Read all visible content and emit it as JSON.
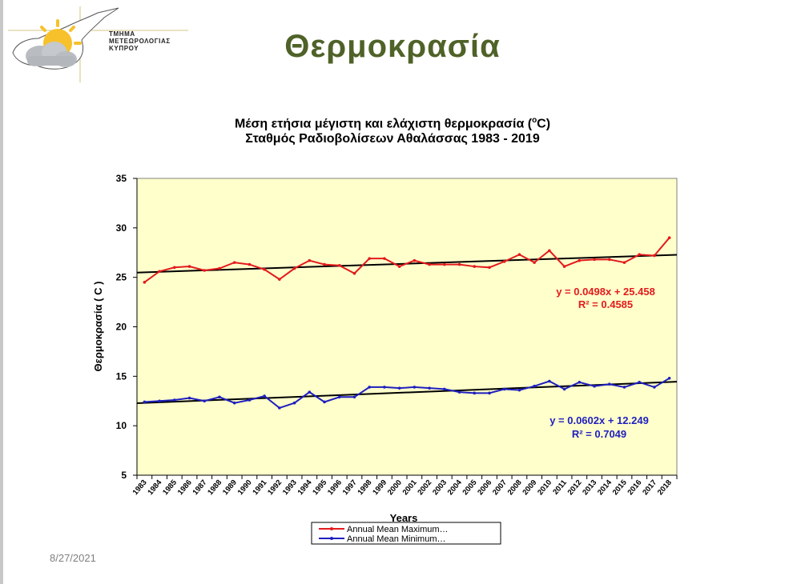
{
  "slide": {
    "title": "Θερμοκρασία",
    "date": "8/27/2021",
    "logo_lines": [
      "ΤΜΗΜΑ",
      "ΜΕΤΕΩΡΟΛΟΓΙΑΣ",
      "ΚΥΠΡΟΥ"
    ]
  },
  "chart_data": {
    "type": "line",
    "title_line1_pre": "Μέση ετήσια μέγιστη και ελάχιστη θερμοκρασία (",
    "title_line1_sup": "o",
    "title_line1_post": "C)",
    "title_line2": "Σταθμός Ραδιοβολίσεων Αθαλάσσας 1983 - 2019",
    "xlabel": "Years",
    "ylabel": "Θερμοκρασία ( C )",
    "ylim": [
      5,
      35
    ],
    "yticks": [
      5,
      10,
      15,
      20,
      25,
      30,
      35
    ],
    "grid": false,
    "plot_background": "#ffffcc",
    "x": [
      "1983",
      "1984",
      "1985",
      "1986",
      "1987",
      "1988",
      "1989",
      "1990",
      "1991",
      "1992",
      "1993",
      "1994",
      "1995",
      "1996",
      "1997",
      "1998",
      "1999",
      "2000",
      "2001",
      "2002",
      "2003",
      "2004",
      "2005",
      "2006",
      "2007",
      "2008",
      "2009",
      "2010",
      "2011",
      "2012",
      "2013",
      "2014",
      "2015",
      "2016",
      "2017",
      "2018"
    ],
    "series": [
      {
        "name": "Annual Mean  Maximum…",
        "color": "#e31a1c",
        "values": [
          24.5,
          25.6,
          26.0,
          26.1,
          25.7,
          25.9,
          26.5,
          26.3,
          25.8,
          24.8,
          25.9,
          26.7,
          26.3,
          26.2,
          25.4,
          26.9,
          26.9,
          26.1,
          26.7,
          26.3,
          26.3,
          26.3,
          26.1,
          26.0,
          26.6,
          27.3,
          26.5,
          27.7,
          26.1,
          26.7,
          26.8,
          26.8,
          26.5,
          27.3,
          27.2,
          29.0
        ],
        "trend": {
          "slope": 0.0498,
          "intercept": 25.458,
          "color": "#000000"
        },
        "equation": "y = 0.0498x + 25.458",
        "r2": "R² = 0.4585"
      },
      {
        "name": "Annual Mean  Minimum…",
        "color": "#1f1fbf",
        "values": [
          12.4,
          12.5,
          12.6,
          12.8,
          12.5,
          12.9,
          12.3,
          12.6,
          13.0,
          11.8,
          12.3,
          13.4,
          12.4,
          12.9,
          12.9,
          13.9,
          13.9,
          13.8,
          13.9,
          13.8,
          13.7,
          13.4,
          13.3,
          13.3,
          13.7,
          13.6,
          14.0,
          14.5,
          13.7,
          14.4,
          14.0,
          14.2,
          13.9,
          14.4,
          13.9,
          14.8
        ],
        "trend": {
          "slope": 0.0602,
          "intercept": 12.249,
          "color": "#000000"
        },
        "equation": "y = 0.0602x + 12.249",
        "r2": "R² = 0.7049"
      }
    ],
    "legend_position": "bottom-center"
  }
}
